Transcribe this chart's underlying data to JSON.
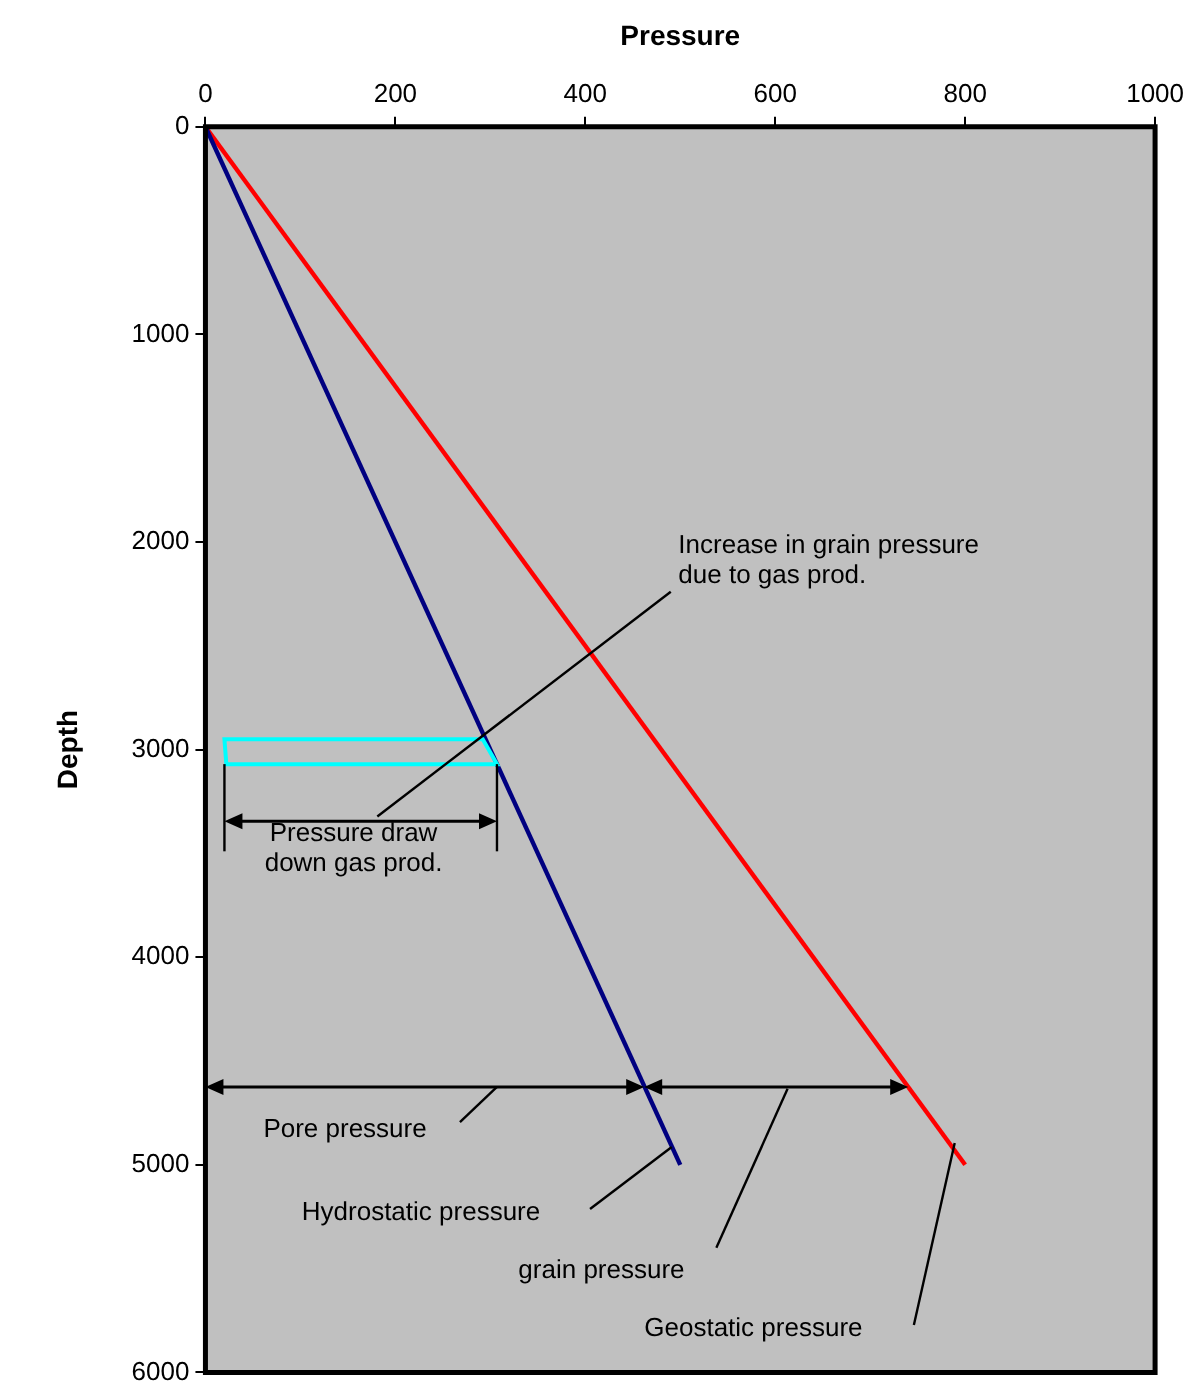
{
  "chart_data": {
    "type": "line",
    "xlabel": "Pressure",
    "ylabel": "Depth",
    "xlim": [
      0,
      1000
    ],
    "xticks": [
      0,
      200,
      400,
      600,
      800,
      1000
    ],
    "ylim": [
      6000,
      0
    ],
    "yticks": [
      0,
      1000,
      2000,
      3000,
      4000,
      5000,
      6000
    ],
    "grid": false,
    "legend": false,
    "marker": "none",
    "line_style": "solid",
    "series": [
      {
        "color": "#000080",
        "x": [
          0,
          500
        ],
        "values": [
          0,
          5000
        ]
      },
      {
        "color": "#ff0000",
        "x": [
          0,
          800
        ],
        "values": [
          0,
          5000
        ]
      }
    ],
    "annotations": [
      "Increase in grain pressure\ndue to gas prod.",
      "Pressure draw\ndown gas prod.",
      "Pore pressure",
      "grain pressure",
      "Hydrostatic pressure",
      "Geostatic pressure"
    ]
  }
}
